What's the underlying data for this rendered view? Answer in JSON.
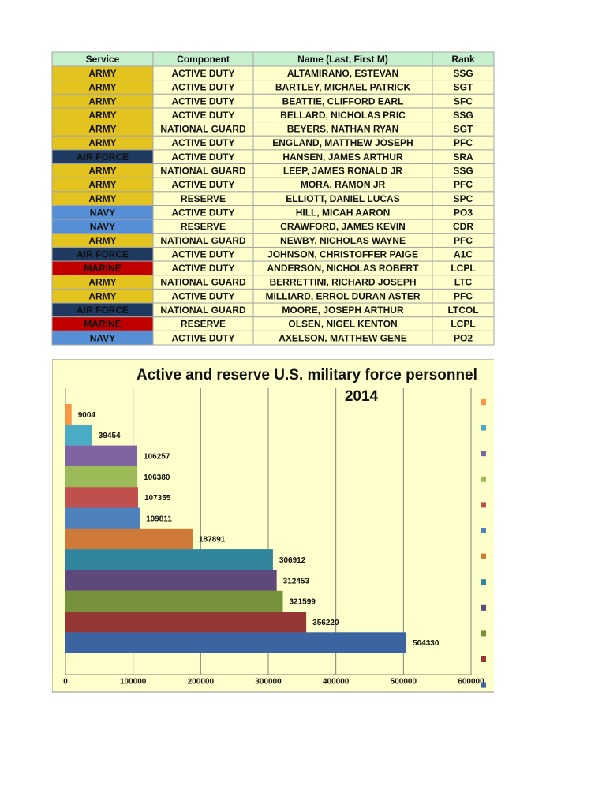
{
  "table": {
    "header": [
      "Service",
      "Component",
      "Name (Last, First M)",
      "Rank"
    ],
    "service_colors": {
      "ARMY": "#e3c31e",
      "AIR FORCE": "#1f3a60",
      "NAVY": "#568fd6",
      "MARINE": "#c00000"
    },
    "rows": [
      [
        "ARMY",
        "ACTIVE DUTY",
        "ALTAMIRANO, ESTEVAN",
        "SSG"
      ],
      [
        "ARMY",
        "ACTIVE DUTY",
        "BARTLEY, MICHAEL PATRICK",
        "SGT"
      ],
      [
        "ARMY",
        "ACTIVE DUTY",
        "BEATTIE, CLIFFORD EARL",
        "SFC"
      ],
      [
        "ARMY",
        "ACTIVE DUTY",
        "BELLARD, NICHOLAS PRIC",
        "SSG"
      ],
      [
        "ARMY",
        "NATIONAL GUARD",
        "BEYERS, NATHAN RYAN",
        "SGT"
      ],
      [
        "ARMY",
        "ACTIVE DUTY",
        "ENGLAND, MATTHEW JOSEPH",
        "PFC"
      ],
      [
        "AIR FORCE",
        "ACTIVE DUTY",
        "HANSEN, JAMES ARTHUR",
        "SRA"
      ],
      [
        "ARMY",
        "NATIONAL GUARD",
        "LEEP, JAMES RONALD JR",
        "SSG"
      ],
      [
        "ARMY",
        "ACTIVE DUTY",
        "MORA, RAMON JR",
        "PFC"
      ],
      [
        "ARMY",
        "RESERVE",
        "ELLIOTT, DANIEL LUCAS",
        "SPC"
      ],
      [
        "NAVY",
        "ACTIVE DUTY",
        "HILL, MICAH AARON",
        "PO3"
      ],
      [
        "NAVY",
        "RESERVE",
        "CRAWFORD, JAMES KEVIN",
        "CDR"
      ],
      [
        "ARMY",
        "NATIONAL GUARD",
        "NEWBY, NICHOLAS WAYNE",
        "PFC"
      ],
      [
        "AIR FORCE",
        "ACTIVE DUTY",
        "JOHNSON, CHRISTOFFER PAIGE",
        "A1C"
      ],
      [
        "MARINE",
        "ACTIVE DUTY",
        "ANDERSON, NICHOLAS ROBERT",
        "LCPL"
      ],
      [
        "ARMY",
        "NATIONAL GUARD",
        "BERRETTINI, RICHARD JOSEPH",
        "LTC"
      ],
      [
        "ARMY",
        "ACTIVE DUTY",
        "MILLIARD, ERROL DURAN ASTER",
        "PFC"
      ],
      [
        "AIR FORCE",
        "NATIONAL GUARD",
        "MOORE, JOSEPH ARTHUR",
        "LTCOL"
      ],
      [
        "MARINE",
        "RESERVE",
        "OLSEN, NIGEL KENTON",
        "LCPL"
      ],
      [
        "NAVY",
        "ACTIVE DUTY",
        "AXELSON, MATTHEW GENE",
        "PO2"
      ]
    ]
  },
  "chart_data": {
    "type": "hbar",
    "title": [
      "Active and reserve U.S. military force personnel",
      "2014"
    ],
    "values": [
      9004,
      39454,
      106257,
      106380,
      107355,
      109811,
      187891,
      306912,
      312453,
      321599,
      356220,
      504330
    ],
    "colors": [
      "#f79646",
      "#4bacc6",
      "#8064a2",
      "#9bbb59",
      "#c0504d",
      "#4f81bd",
      "#d07a3a",
      "#31859c",
      "#5f497a",
      "#76923c",
      "#953735",
      "#3b64a0"
    ],
    "xlim": [
      0,
      600000
    ],
    "xticks": [
      0,
      100000,
      200000,
      300000,
      400000,
      500000,
      600000
    ],
    "grid": true
  }
}
